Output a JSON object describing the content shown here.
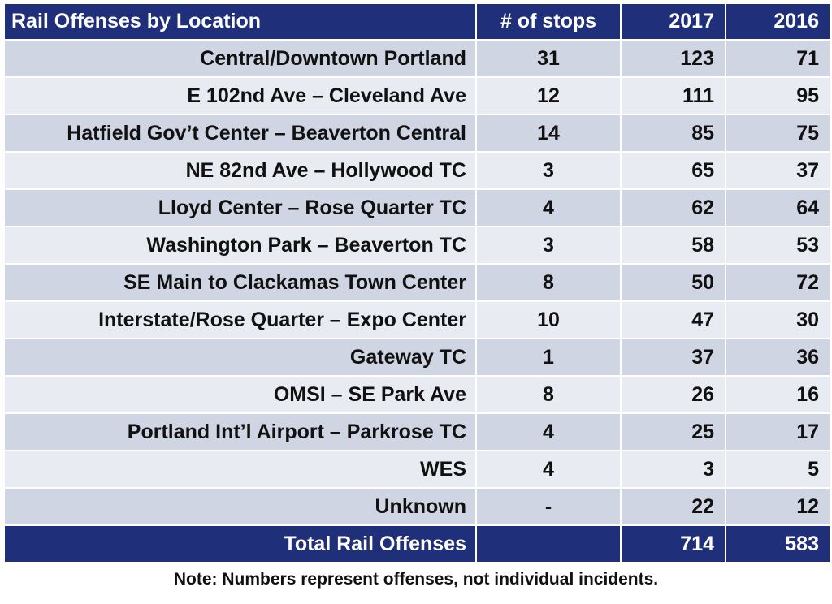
{
  "table": {
    "headers": {
      "location": "Rail Offenses by Location",
      "stops": "# of stops",
      "y2017": "2017",
      "y2016": "2016"
    },
    "rows": [
      {
        "location": "Central/Downtown Portland",
        "stops": "31",
        "y2017": "123",
        "y2016": "71"
      },
      {
        "location": "E 102nd Ave – Cleveland Ave",
        "stops": "12",
        "y2017": "111",
        "y2016": "95"
      },
      {
        "location": "Hatfield Gov’t Center – Beaverton Central",
        "stops": "14",
        "y2017": "85",
        "y2016": "75"
      },
      {
        "location": "NE 82nd Ave – Hollywood TC",
        "stops": "3",
        "y2017": "65",
        "y2016": "37"
      },
      {
        "location": "Lloyd Center – Rose Quarter TC",
        "stops": "4",
        "y2017": "62",
        "y2016": "64"
      },
      {
        "location": "Washington Park – Beaverton TC",
        "stops": "3",
        "y2017": "58",
        "y2016": "53"
      },
      {
        "location": "SE Main to Clackamas Town Center",
        "stops": "8",
        "y2017": "50",
        "y2016": "72"
      },
      {
        "location": "Interstate/Rose Quarter – Expo Center",
        "stops": "10",
        "y2017": "47",
        "y2016": "30"
      },
      {
        "location": "Gateway TC",
        "stops": "1",
        "y2017": "37",
        "y2016": "36"
      },
      {
        "location": "OMSI – SE Park Ave",
        "stops": "8",
        "y2017": "26",
        "y2016": "16"
      },
      {
        "location": "Portland Int’l Airport – Parkrose TC",
        "stops": "4",
        "y2017": "25",
        "y2016": "17"
      },
      {
        "location": "WES",
        "stops": "4",
        "y2017": "3",
        "y2016": "5"
      },
      {
        "location": "Unknown",
        "stops": "-",
        "y2017": "22",
        "y2016": "12"
      }
    ],
    "total": {
      "label": "Total Rail Offenses",
      "stops": "",
      "y2017": "714",
      "y2016": "583"
    }
  },
  "note": "Note: Numbers represent offenses, not individual incidents.",
  "colors": {
    "header_bg": "#1f2f7a",
    "row_dark": "#d0d5e3",
    "row_light": "#e9ebf2",
    "header_text": "#ffffff"
  }
}
